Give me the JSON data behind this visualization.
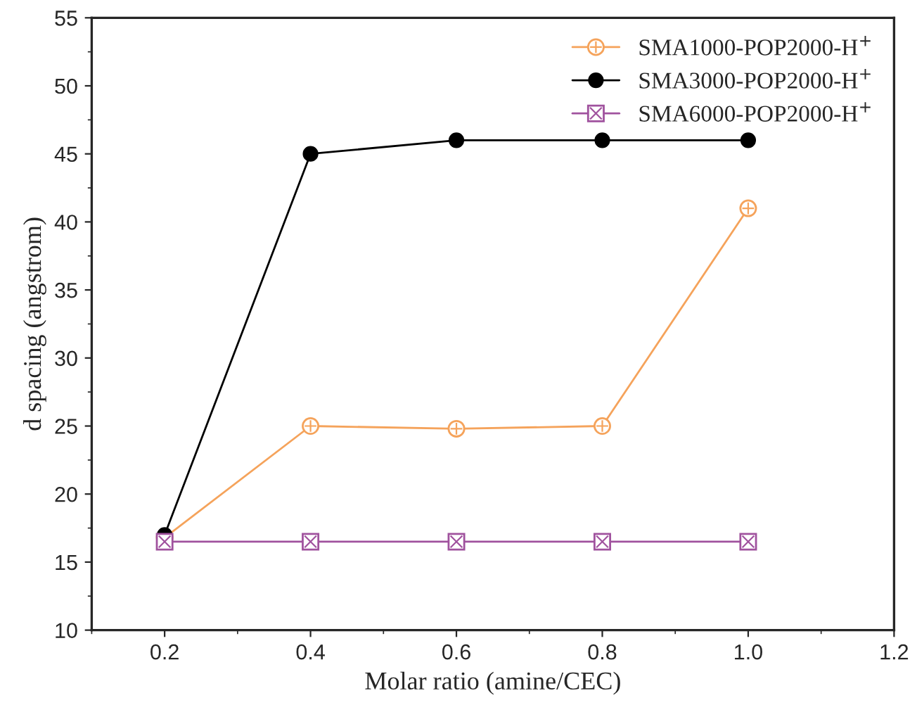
{
  "chart_data": {
    "type": "line",
    "xlabel": "Molar ratio (amine/CEC)",
    "ylabel": "d spacing (angstrom)",
    "x": [
      0.2,
      0.4,
      0.6,
      0.8,
      1.0
    ],
    "series": [
      {
        "name": "SMA1000-POP2000-H$^{+}$",
        "color": "#f5a35b",
        "marker": "circle",
        "values": [
          16.8,
          25,
          24.8,
          25,
          41
        ]
      },
      {
        "name": "SMA3000-POP2000-H$^{+}$",
        "color": "#000000",
        "marker": "circle",
        "values": [
          17,
          45,
          46,
          46,
          46
        ]
      },
      {
        "name": "SMA6000-POP2000-H$^{+}$",
        "color": "#a0529e",
        "marker": "square",
        "values": [
          16.5,
          16.5,
          16.5,
          16.5,
          16.5
        ]
      }
    ],
    "xlim": [
      0.1,
      1.2
    ],
    "xticks": [
      0.2,
      0.4,
      0.6,
      0.8,
      {
        "value": 1,
        "label": "1.0"
      },
      1.2
    ],
    "ylim": [
      10,
      55
    ],
    "yticks": [
      10,
      15,
      20,
      25,
      30,
      35,
      40,
      45,
      50,
      55
    ],
    "grid": false,
    "legend": "top right",
    "line_style": "solid"
  }
}
